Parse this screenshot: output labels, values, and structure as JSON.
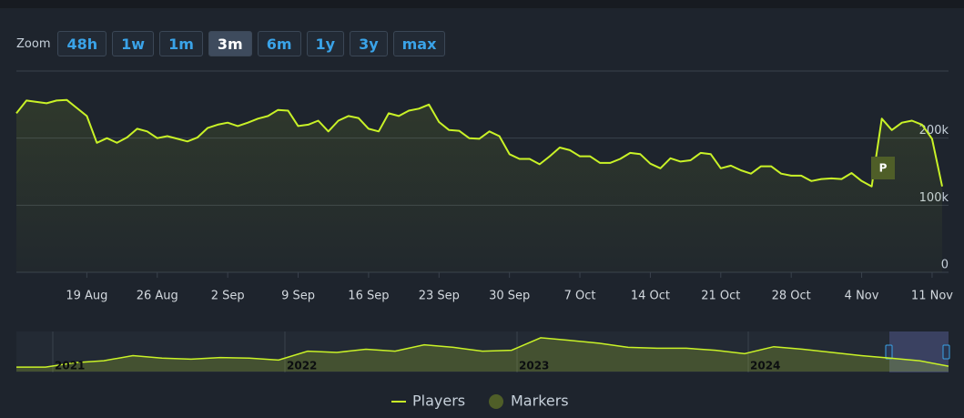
{
  "zoom": {
    "label": "Zoom",
    "buttons": [
      "48h",
      "1w",
      "1m",
      "3m",
      "6m",
      "1y",
      "3y",
      "max"
    ],
    "active": "3m"
  },
  "chart_data": {
    "type": "line",
    "categories": [
      "12 Aug",
      "13 Aug",
      "14 Aug",
      "15 Aug",
      "16 Aug",
      "17 Aug",
      "18 Aug",
      "19 Aug",
      "20 Aug",
      "21 Aug",
      "22 Aug",
      "23 Aug",
      "24 Aug",
      "25 Aug",
      "26 Aug",
      "27 Aug",
      "28 Aug",
      "29 Aug",
      "30 Aug",
      "31 Aug",
      "1 Sep",
      "2 Sep",
      "3 Sep",
      "4 Sep",
      "5 Sep",
      "6 Sep",
      "7 Sep",
      "8 Sep",
      "9 Sep",
      "10 Sep",
      "11 Sep",
      "12 Sep",
      "13 Sep",
      "14 Sep",
      "15 Sep",
      "16 Sep",
      "17 Sep",
      "18 Sep",
      "19 Sep",
      "20 Sep",
      "21 Sep",
      "22 Sep",
      "23 Sep",
      "24 Sep",
      "25 Sep",
      "26 Sep",
      "27 Sep",
      "28 Sep",
      "29 Sep",
      "30 Sep",
      "1 Oct",
      "2 Oct",
      "3 Oct",
      "4 Oct",
      "5 Oct",
      "6 Oct",
      "7 Oct",
      "8 Oct",
      "9 Oct",
      "10 Oct",
      "11 Oct",
      "12 Oct",
      "13 Oct",
      "14 Oct",
      "15 Oct",
      "16 Oct",
      "17 Oct",
      "18 Oct",
      "19 Oct",
      "20 Oct",
      "21 Oct",
      "22 Oct",
      "23 Oct",
      "24 Oct",
      "25 Oct",
      "26 Oct",
      "27 Oct",
      "28 Oct",
      "29 Oct",
      "30 Oct",
      "31 Oct",
      "1 Nov",
      "2 Nov",
      "3 Nov",
      "4 Nov",
      "5 Nov",
      "6 Nov",
      "7 Nov",
      "8 Nov",
      "9 Nov",
      "10 Nov",
      "11 Nov",
      "12 Nov"
    ],
    "series": [
      {
        "name": "Players",
        "color": "#c9f227",
        "values": [
          237000,
          256000,
          254000,
          252000,
          256000,
          257000,
          245000,
          233000,
          193000,
          200000,
          193000,
          201000,
          214000,
          210000,
          200000,
          203000,
          199000,
          195000,
          201000,
          215000,
          220000,
          223000,
          218000,
          223000,
          229000,
          233000,
          242000,
          241000,
          218000,
          220000,
          226000,
          210000,
          226000,
          233000,
          230000,
          214000,
          210000,
          237000,
          233000,
          241000,
          244000,
          250000,
          224000,
          212000,
          211000,
          200000,
          199000,
          210000,
          203000,
          176000,
          169000,
          169000,
          161000,
          173000,
          186000,
          182000,
          173000,
          173000,
          163000,
          163000,
          169000,
          178000,
          176000,
          162000,
          155000,
          170000,
          165000,
          167000,
          178000,
          176000,
          155000,
          159000,
          152000,
          147000,
          158000,
          158000,
          147000,
          144000,
          144000,
          136000,
          139000,
          140000,
          139000,
          148000,
          136000,
          128000,
          229000,
          212000,
          223000,
          226000,
          220000,
          199000,
          128000
        ]
      }
    ],
    "markers": {
      "name": "Markers",
      "color": "#4f5e28",
      "items": [
        {
          "label": "P"
        }
      ]
    },
    "xticks": [
      "19 Aug",
      "26 Aug",
      "2 Sep",
      "9 Sep",
      "16 Sep",
      "23 Sep",
      "30 Sep",
      "7 Oct",
      "14 Oct",
      "21 Oct",
      "28 Oct",
      "4 Nov",
      "11 Nov"
    ],
    "ylim": [
      0,
      300000
    ],
    "yticks": [
      0,
      {
        "value": 100000,
        "label": "100k"
      },
      {
        "value": 200000,
        "label": "200k"
      }
    ],
    "grid": true,
    "navigator": {
      "years": [
        "2021",
        "2022",
        "2023",
        "2024"
      ],
      "ylim": [
        0,
        600000
      ],
      "values": [
        70000,
        70000,
        140000,
        170000,
        250000,
        210000,
        195000,
        220000,
        210000,
        180000,
        320000,
        300000,
        350000,
        320000,
        420000,
        380000,
        320000,
        335000,
        530000,
        490000,
        445000,
        380000,
        365000,
        365000,
        335000,
        280000,
        390000,
        350000,
        300000,
        250000,
        210000,
        170000,
        85000
      ]
    }
  }
}
